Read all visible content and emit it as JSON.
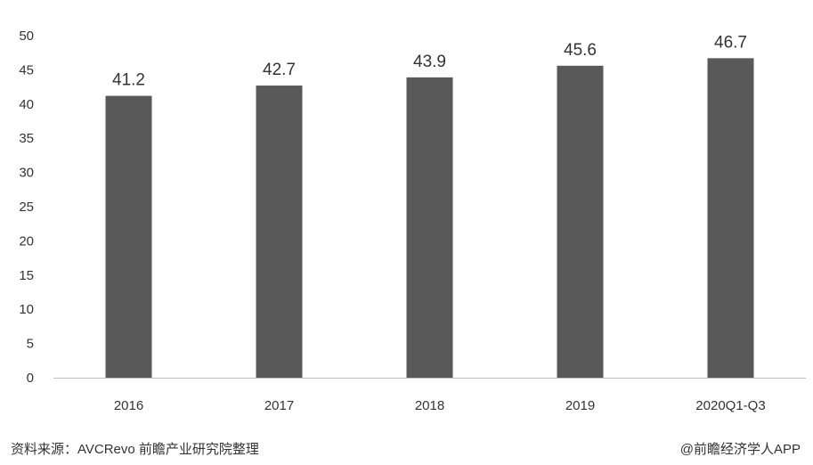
{
  "chart_data": {
    "type": "bar",
    "categories": [
      "2016",
      "2017",
      "2018",
      "2019",
      "2020Q1-Q3"
    ],
    "values": [
      41.2,
      42.7,
      43.9,
      45.6,
      46.7
    ],
    "data_labels": [
      "41.2",
      "42.7",
      "43.9",
      "45.6",
      "46.7"
    ],
    "title": "",
    "xlabel": "",
    "ylabel": "",
    "ylim": [
      0,
      50
    ],
    "yticks": [
      "0",
      "5",
      "10",
      "15",
      "20",
      "25",
      "30",
      "35",
      "40",
      "45",
      "50"
    ],
    "grid": false,
    "legend": "none",
    "bar_color": "#595959",
    "axis_color": "#bfbfbf"
  },
  "footer": {
    "source": "资料来源：AVCRevo 前瞻产业研究院整理",
    "brand": "@前瞻经济学人APP"
  }
}
